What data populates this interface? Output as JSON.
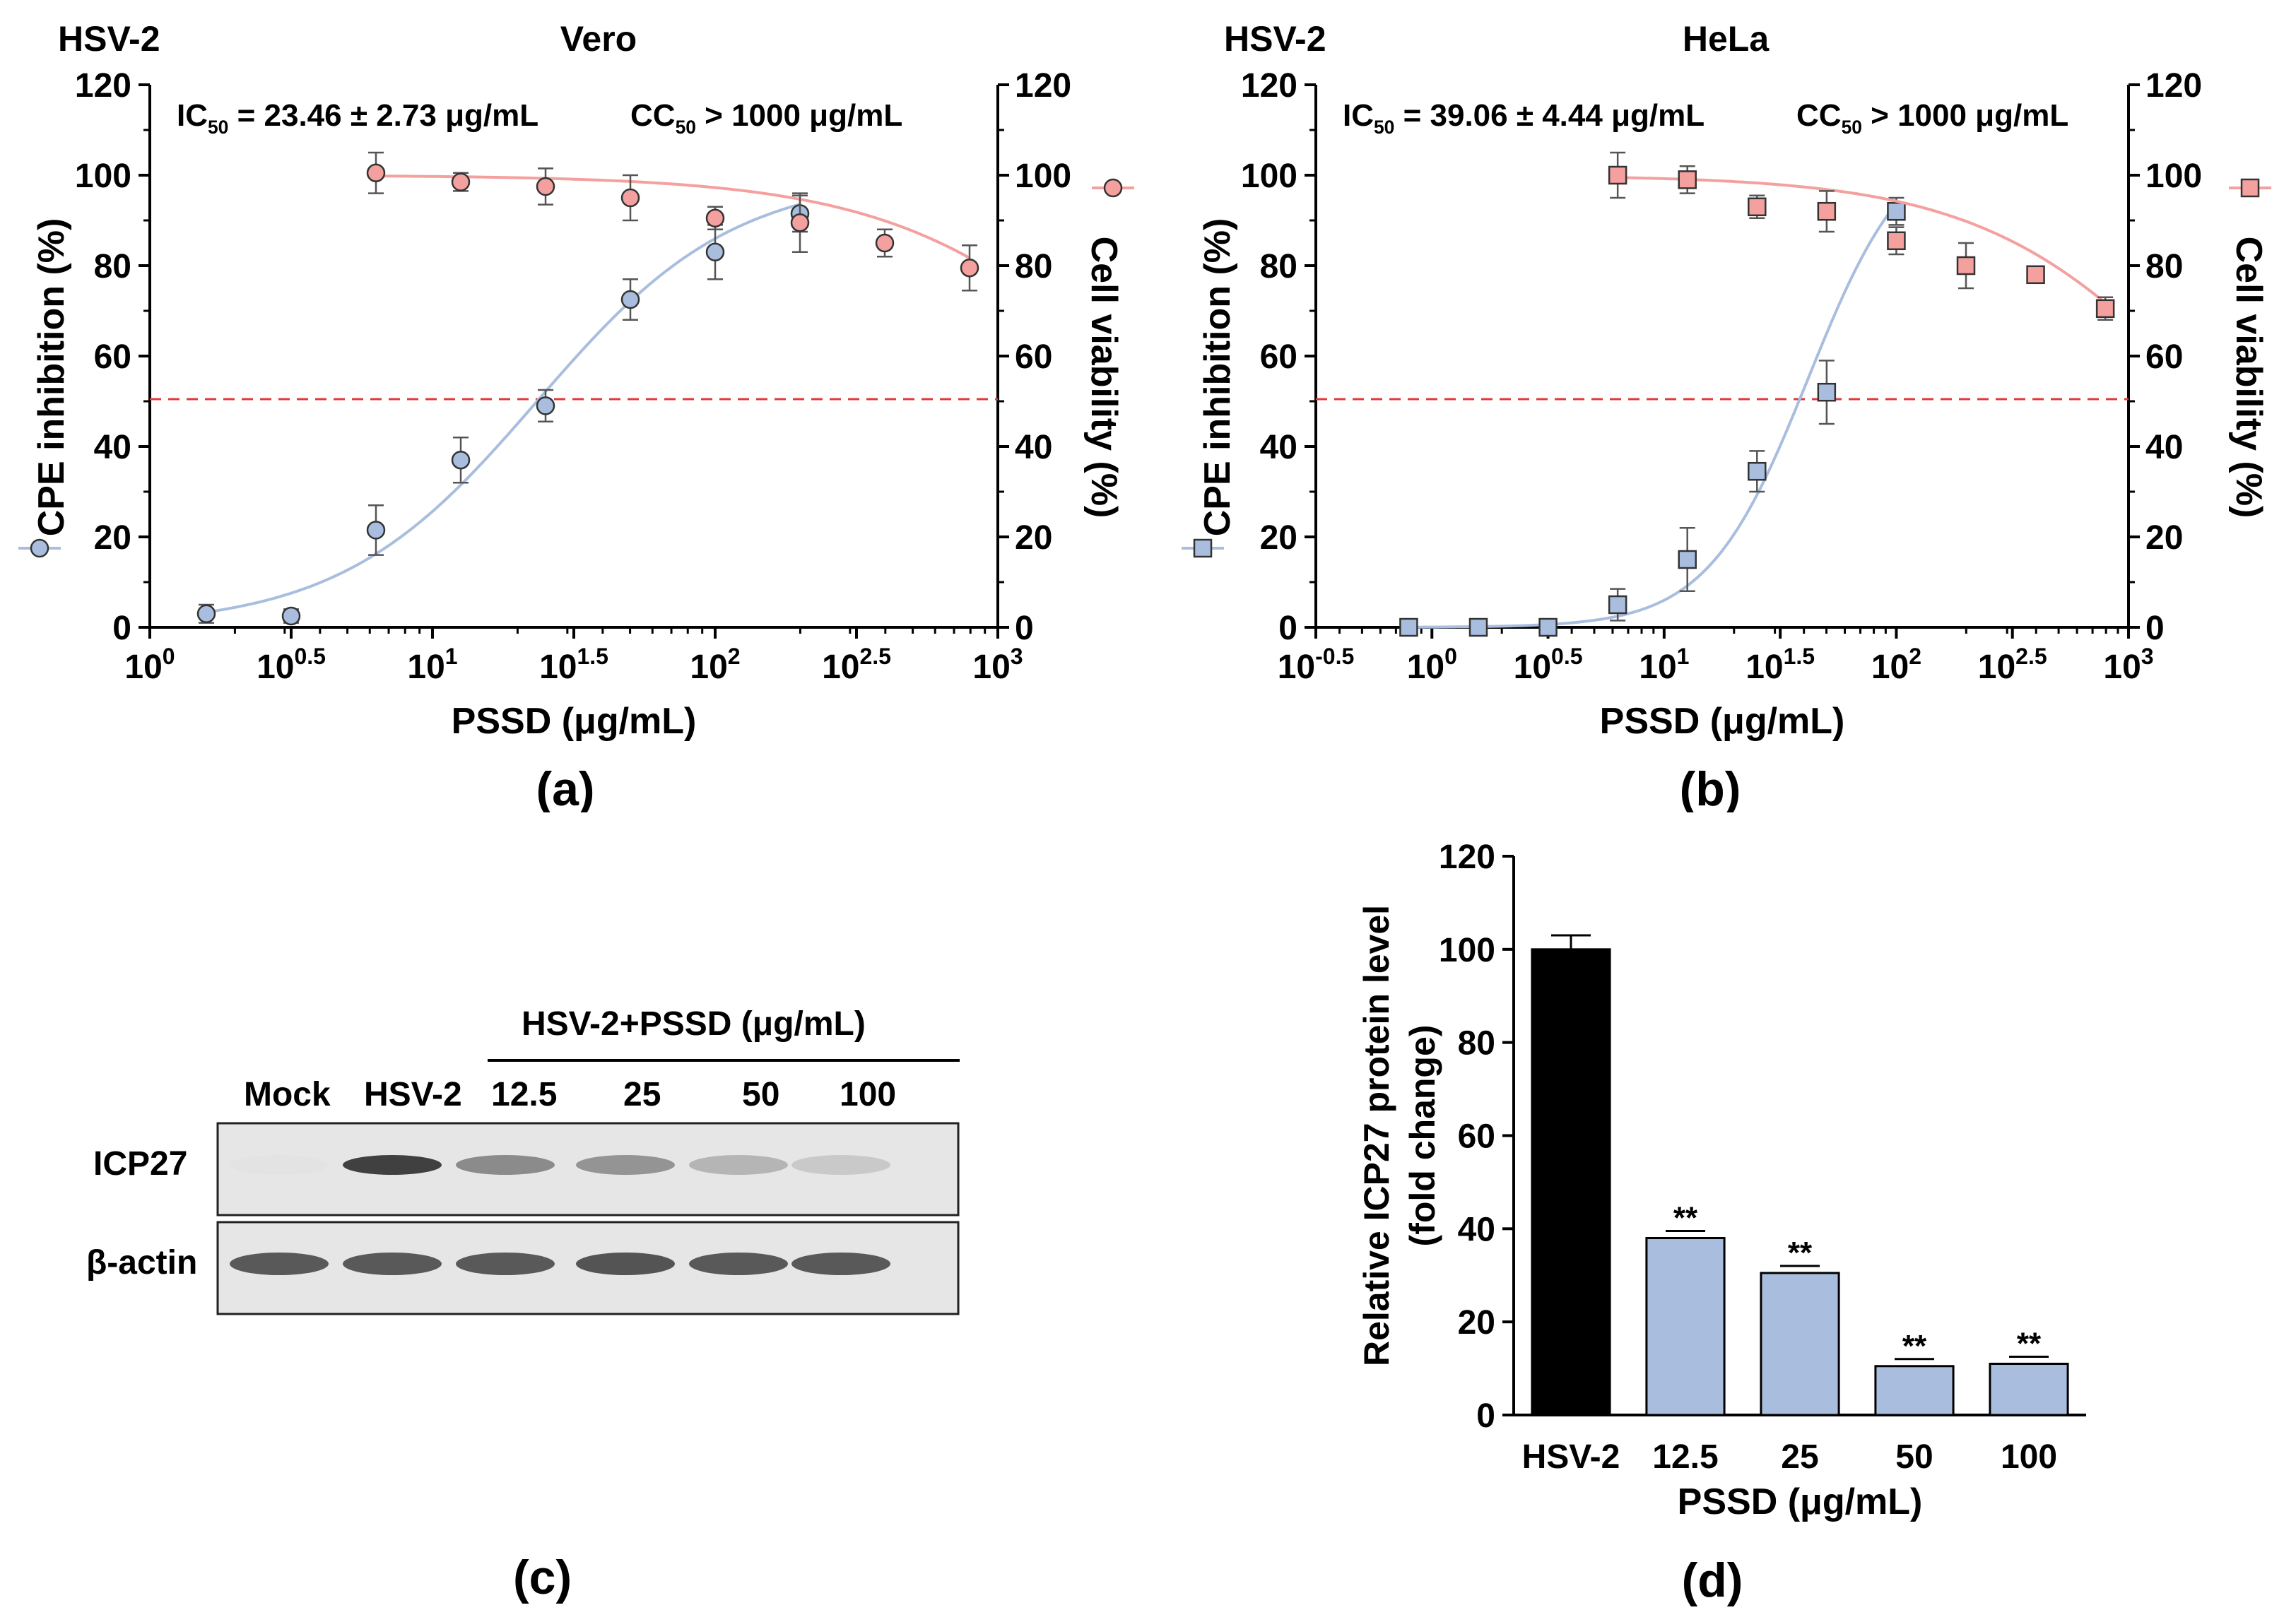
{
  "chart_data": [
    {
      "type": "scatter",
      "panel": "(a)",
      "virus": "HSV-2",
      "title": "Vero",
      "xlabel": "PSSD (μg/mL)",
      "ylabel_left": "CPE inhibition (%)",
      "ylabel_right": "Cell viability (%)",
      "xscale": "log10",
      "xlim_log": [
        0,
        3
      ],
      "x_ticks": [
        {
          "pow": 0,
          "base": "10",
          "exp": "0"
        },
        {
          "pow": 0.5,
          "base": "10",
          "exp": "0.5"
        },
        {
          "pow": 1,
          "base": "10",
          "exp": "1"
        },
        {
          "pow": 1.5,
          "base": "10",
          "exp": "1.5"
        },
        {
          "pow": 2,
          "base": "10",
          "exp": "2"
        },
        {
          "pow": 2.5,
          "base": "10",
          "exp": "2.5"
        },
        {
          "pow": 3,
          "base": "10",
          "exp": "3"
        }
      ],
      "ylim": [
        0,
        120
      ],
      "y_ticks": [
        "0",
        "20",
        "40",
        "60",
        "80",
        "100",
        "120"
      ],
      "ic50_text": {
        "pre": "IC",
        "sub": "50",
        "post": " = 23.46 ± 2.73 μg/mL"
      },
      "cc50_text": {
        "pre": "CC",
        "sub": "50",
        "post": " > 1000 μg/mL"
      },
      "threshold": 50,
      "series": [
        {
          "name": "CPE inhibition",
          "axis": "left",
          "marker": "circle",
          "fill": "#a9bedf",
          "line": "#a9bedf",
          "x_log": [
            0.2,
            0.5,
            0.8,
            1.1,
            1.4,
            1.7,
            2.0,
            2.3
          ],
          "y": [
            3,
            2.5,
            21.5,
            37,
            49,
            72.5,
            83,
            91.5
          ],
          "err": [
            2,
            1.5,
            5.5,
            5,
            3.5,
            4.5,
            6,
            4
          ],
          "fit": {
            "bottom": 0,
            "top": 100,
            "logec50": 1.37,
            "hill": 1.25
          }
        },
        {
          "name": "Cell viability",
          "axis": "right",
          "marker": "circle",
          "fill": "#f4a09e",
          "line": "#f4a09e",
          "x_log": [
            0.8,
            1.1,
            1.4,
            1.7,
            2.0,
            2.3,
            2.6,
            2.9
          ],
          "y": [
            100.5,
            98.5,
            97.5,
            95,
            90.5,
            89.5,
            85,
            79.5
          ],
          "err": [
            4.5,
            2,
            4,
            5,
            2.5,
            6.5,
            3,
            5
          ],
          "fit": {
            "bottom": 0,
            "top": 100,
            "logec50": 3.55,
            "hill": 1.0
          }
        }
      ]
    },
    {
      "type": "scatter",
      "panel": "(b)",
      "virus": "HSV-2",
      "title": "HeLa",
      "xlabel": "PSSD (μg/mL)",
      "ylabel_left": "CPE inhibition (%)",
      "ylabel_right": "Cell viability (%)",
      "xscale": "log10",
      "xlim_log": [
        -0.5,
        3
      ],
      "x_ticks": [
        {
          "pow": -0.5,
          "base": "10",
          "exp": "-0.5"
        },
        {
          "pow": 0,
          "base": "10",
          "exp": "0"
        },
        {
          "pow": 0.5,
          "base": "10",
          "exp": "0.5"
        },
        {
          "pow": 1,
          "base": "10",
          "exp": "1"
        },
        {
          "pow": 1.5,
          "base": "10",
          "exp": "1.5"
        },
        {
          "pow": 2,
          "base": "10",
          "exp": "2"
        },
        {
          "pow": 2.5,
          "base": "10",
          "exp": "2.5"
        },
        {
          "pow": 3,
          "base": "10",
          "exp": "3"
        }
      ],
      "ylim": [
        0,
        120
      ],
      "y_ticks": [
        "0",
        "20",
        "40",
        "60",
        "80",
        "100",
        "120"
      ],
      "ic50_text": {
        "pre": "IC",
        "sub": "50",
        "post": " = 39.06 ± 4.44 μg/mL"
      },
      "cc50_text": {
        "pre": "CC",
        "sub": "50",
        "post": " > 1000 μg/mL"
      },
      "threshold": 50,
      "series": [
        {
          "name": "CPE inhibition",
          "axis": "left",
          "marker": "square",
          "fill": "#a9bedf",
          "line": "#a9bedf",
          "x_log": [
            -0.1,
            0.2,
            0.5,
            0.8,
            1.1,
            1.4,
            1.7,
            2.0
          ],
          "y": [
            0,
            0,
            0,
            5,
            15,
            34.5,
            52,
            92
          ],
          "err": [
            0.5,
            0.5,
            0.5,
            3.5,
            7,
            4.5,
            7,
            3
          ],
          "fit": {
            "bottom": 0,
            "top": 110,
            "logec50": 1.62,
            "hill": 2.0
          }
        },
        {
          "name": "Cell viability",
          "axis": "right",
          "marker": "square",
          "fill": "#f4a09e",
          "line": "#f4a09e",
          "x_log": [
            0.8,
            1.1,
            1.4,
            1.7,
            2.0,
            2.3,
            2.6,
            2.9
          ],
          "y": [
            100,
            99,
            93,
            92,
            85.5,
            80,
            78,
            70.5
          ],
          "err": [
            5,
            3,
            2.5,
            4.5,
            3,
            5,
            1,
            2.5
          ],
          "fit": {
            "bottom": 0,
            "top": 100,
            "logec50": 3.35,
            "hill": 0.9
          }
        }
      ]
    },
    {
      "type": "bar",
      "panel": "(d)",
      "ylabel_line1": "Relative ICP27 protein level",
      "ylabel_line2": "(fold change)",
      "xlabel": "PSSD (μg/mL)",
      "ylim": [
        0,
        120
      ],
      "y_ticks": [
        "0",
        "20",
        "40",
        "60",
        "80",
        "100",
        "120"
      ],
      "categories": [
        "HSV-2",
        "12.5",
        "25",
        "50",
        "100"
      ],
      "values": [
        100,
        38,
        30.5,
        10.5,
        11
      ],
      "err": [
        3,
        0,
        0,
        0,
        0
      ],
      "colors": [
        "#000000",
        "#a9bedf",
        "#a9bedf",
        "#a9bedf",
        "#a9bedf"
      ],
      "significance": [
        "",
        "**",
        "**",
        "**",
        "**"
      ]
    }
  ],
  "blot": {
    "panel": "(c)",
    "group_label": "HSV-2+PSSD (μg/mL)",
    "lanes": [
      "Mock",
      "HSV-2",
      "12.5",
      "25",
      "50",
      "100"
    ],
    "rows": [
      {
        "name": "ICP27",
        "intensity": [
          0.02,
          1.0,
          0.55,
          0.5,
          0.3,
          0.18
        ]
      },
      {
        "name": "β-actin",
        "intensity": [
          0.85,
          0.85,
          0.85,
          0.88,
          0.85,
          0.85
        ]
      }
    ]
  }
}
